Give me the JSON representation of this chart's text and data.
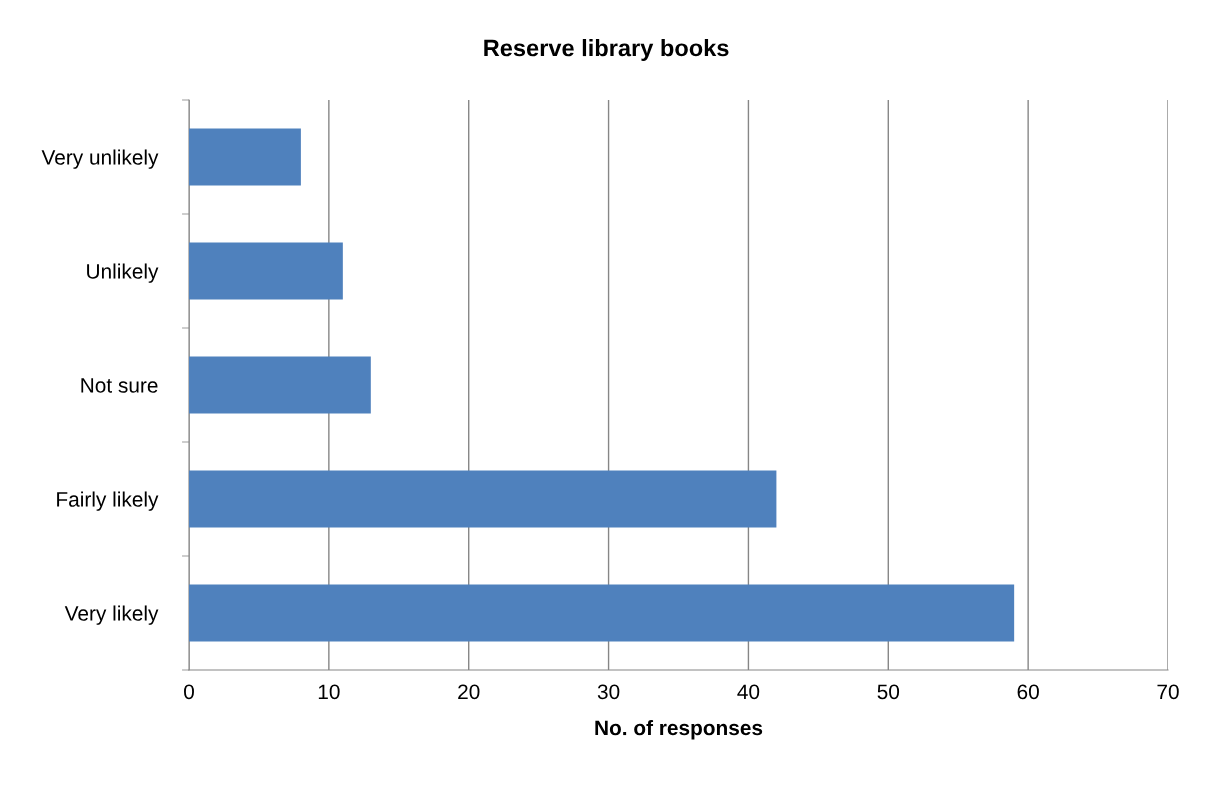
{
  "chart_data": {
    "type": "bar",
    "orientation": "horizontal",
    "title": "Reserve library books",
    "xlabel": "No. of responses",
    "categories": [
      "Very unlikely",
      "Unlikely",
      "Not sure",
      "Fairly likely",
      "Very likely"
    ],
    "values": [
      8,
      11,
      13,
      42,
      59
    ],
    "color": "#4f81bd",
    "xlim": [
      0,
      70
    ],
    "xticks": [
      0,
      10,
      20,
      30,
      40,
      50,
      60,
      70
    ],
    "grid": "x",
    "legend": false
  }
}
